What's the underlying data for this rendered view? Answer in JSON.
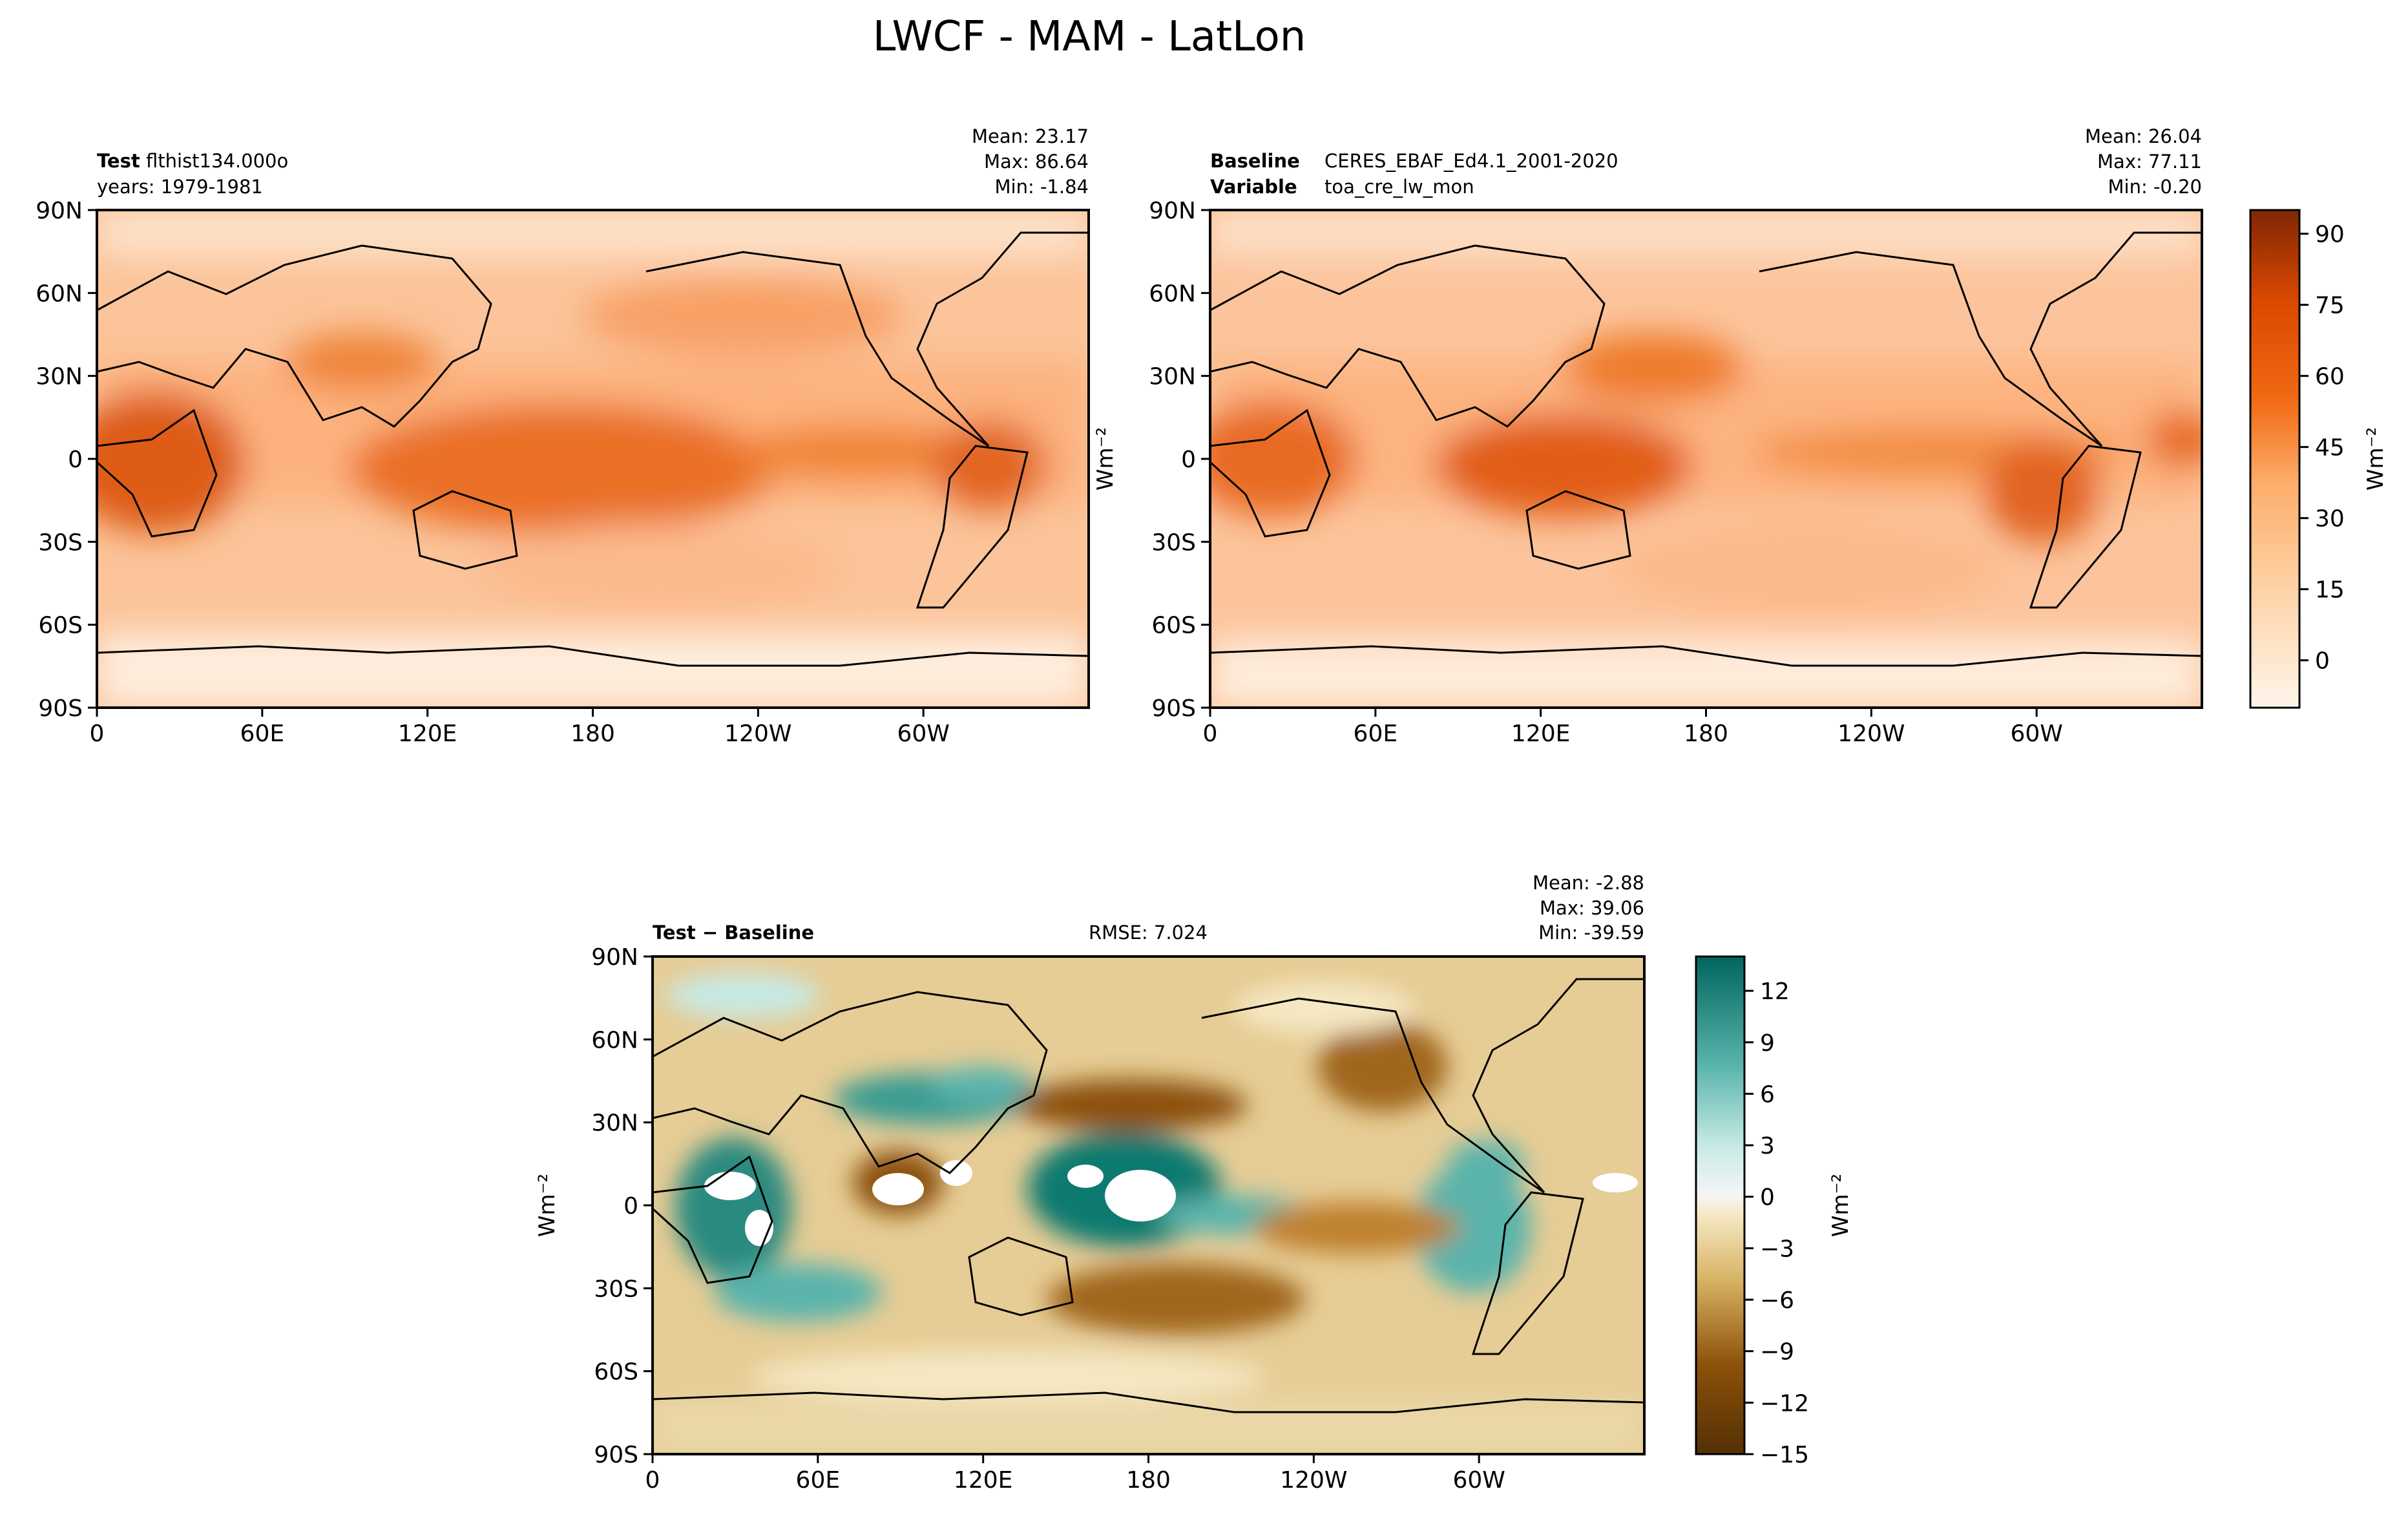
{
  "figure": {
    "title": "LWCF - MAM - LatLon"
  },
  "chart_data": [
    {
      "type": "heatmap",
      "name": "test",
      "label_bold": "Test",
      "label_text": "flthist134.000o",
      "sublabel": "years: 1979-1981",
      "stats": [
        "Mean: 23.17",
        "Max: 86.64",
        "Min: -1.84"
      ],
      "xticks": [
        "0",
        "60E",
        "120E",
        "180",
        "120W",
        "60W"
      ],
      "yticks": [
        "90N",
        "60N",
        "30N",
        "0",
        "30S",
        "60S",
        "90S"
      ],
      "ylabel": "",
      "xlim": [
        0,
        360
      ],
      "ylim": [
        -90,
        90
      ],
      "colormap": "Oranges",
      "grid": false
    },
    {
      "type": "heatmap",
      "name": "baseline",
      "label_bold": "Baseline",
      "label_text": "CERES_EBAF_Ed4.1_2001-2020",
      "label2_bold": "Variable",
      "label2_text": "toa_cre_lw_mon",
      "stats": [
        "Mean: 26.04",
        "Max: 77.11",
        "Min: -0.20"
      ],
      "xticks": [
        "0",
        "60E",
        "120E",
        "180",
        "120W",
        "60W"
      ],
      "yticks": [
        "90N",
        "60N",
        "30N",
        "0",
        "30S",
        "60S",
        "90S"
      ],
      "ylabel": "Wm⁻²",
      "xlim": [
        0,
        360
      ],
      "ylim": [
        -90,
        90
      ],
      "colormap": "Oranges",
      "colorbar": {
        "ticks": [
          "90",
          "75",
          "60",
          "45",
          "30",
          "15",
          "0"
        ],
        "tick_values": [
          90,
          75,
          60,
          45,
          30,
          15,
          0
        ],
        "range": [
          -10,
          95
        ],
        "label": "Wm⁻²"
      },
      "grid": false
    },
    {
      "type": "heatmap",
      "name": "difference",
      "label_bold": "Test − Baseline",
      "rmse": "RMSE: 7.024",
      "stats": [
        "Mean: -2.88",
        "Max: 39.06",
        "Min: -39.59"
      ],
      "xticks": [
        "0",
        "60E",
        "120E",
        "180",
        "120W",
        "60W"
      ],
      "yticks": [
        "90N",
        "60N",
        "30N",
        "0",
        "30S",
        "60S",
        "90S"
      ],
      "ylabel": "Wm⁻²",
      "xlim": [
        0,
        360
      ],
      "ylim": [
        -90,
        90
      ],
      "colormap": "BrBG",
      "colorbar": {
        "ticks": [
          "12",
          "9",
          "6",
          "3",
          "0",
          "−3",
          "−6",
          "−9",
          "−12",
          "−15"
        ],
        "tick_values": [
          12,
          9,
          6,
          3,
          0,
          -3,
          -6,
          -9,
          -12,
          -15
        ],
        "range": [
          -15,
          14
        ],
        "label": "Wm⁻²"
      },
      "grid": false
    }
  ]
}
